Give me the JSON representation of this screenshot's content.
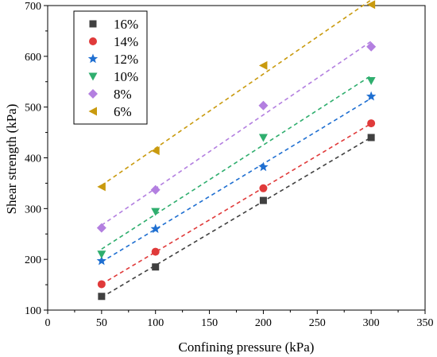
{
  "chart_data": {
    "type": "scatter",
    "xlabel": "Confining pressure (kPa)",
    "ylabel": "Shear strength (kPa)",
    "xlim": [
      0,
      350
    ],
    "ylim": [
      100,
      700
    ],
    "x_ticks": [
      "0",
      "50",
      "100",
      "150",
      "200",
      "250",
      "300",
      "350"
    ],
    "y_ticks": [
      "100",
      "200",
      "300",
      "400",
      "500",
      "600",
      "700"
    ],
    "grid": false,
    "legend_position": "top-left",
    "x": [
      50,
      100,
      200,
      300
    ],
    "series": [
      {
        "name": "16%",
        "values": [
          127,
          185,
          316,
          440
        ],
        "color": "#404040",
        "marker": "square"
      },
      {
        "name": "14%",
        "values": [
          151,
          215,
          340,
          468
        ],
        "color": "#e03a3a",
        "marker": "circle"
      },
      {
        "name": "12%",
        "values": [
          197,
          260,
          382,
          521
        ],
        "color": "#1f6fd1",
        "marker": "star"
      },
      {
        "name": "10%",
        "values": [
          210,
          294,
          440,
          552
        ],
        "color": "#2fae6e",
        "marker": "triangle-down"
      },
      {
        "name": "8%",
        "values": [
          262,
          337,
          503,
          619
        ],
        "color": "#b37fe0",
        "marker": "diamond"
      },
      {
        "name": "6%",
        "values": [
          343,
          414,
          582,
          702
        ],
        "color": "#c99a0e",
        "marker": "triangle-left"
      }
    ]
  }
}
